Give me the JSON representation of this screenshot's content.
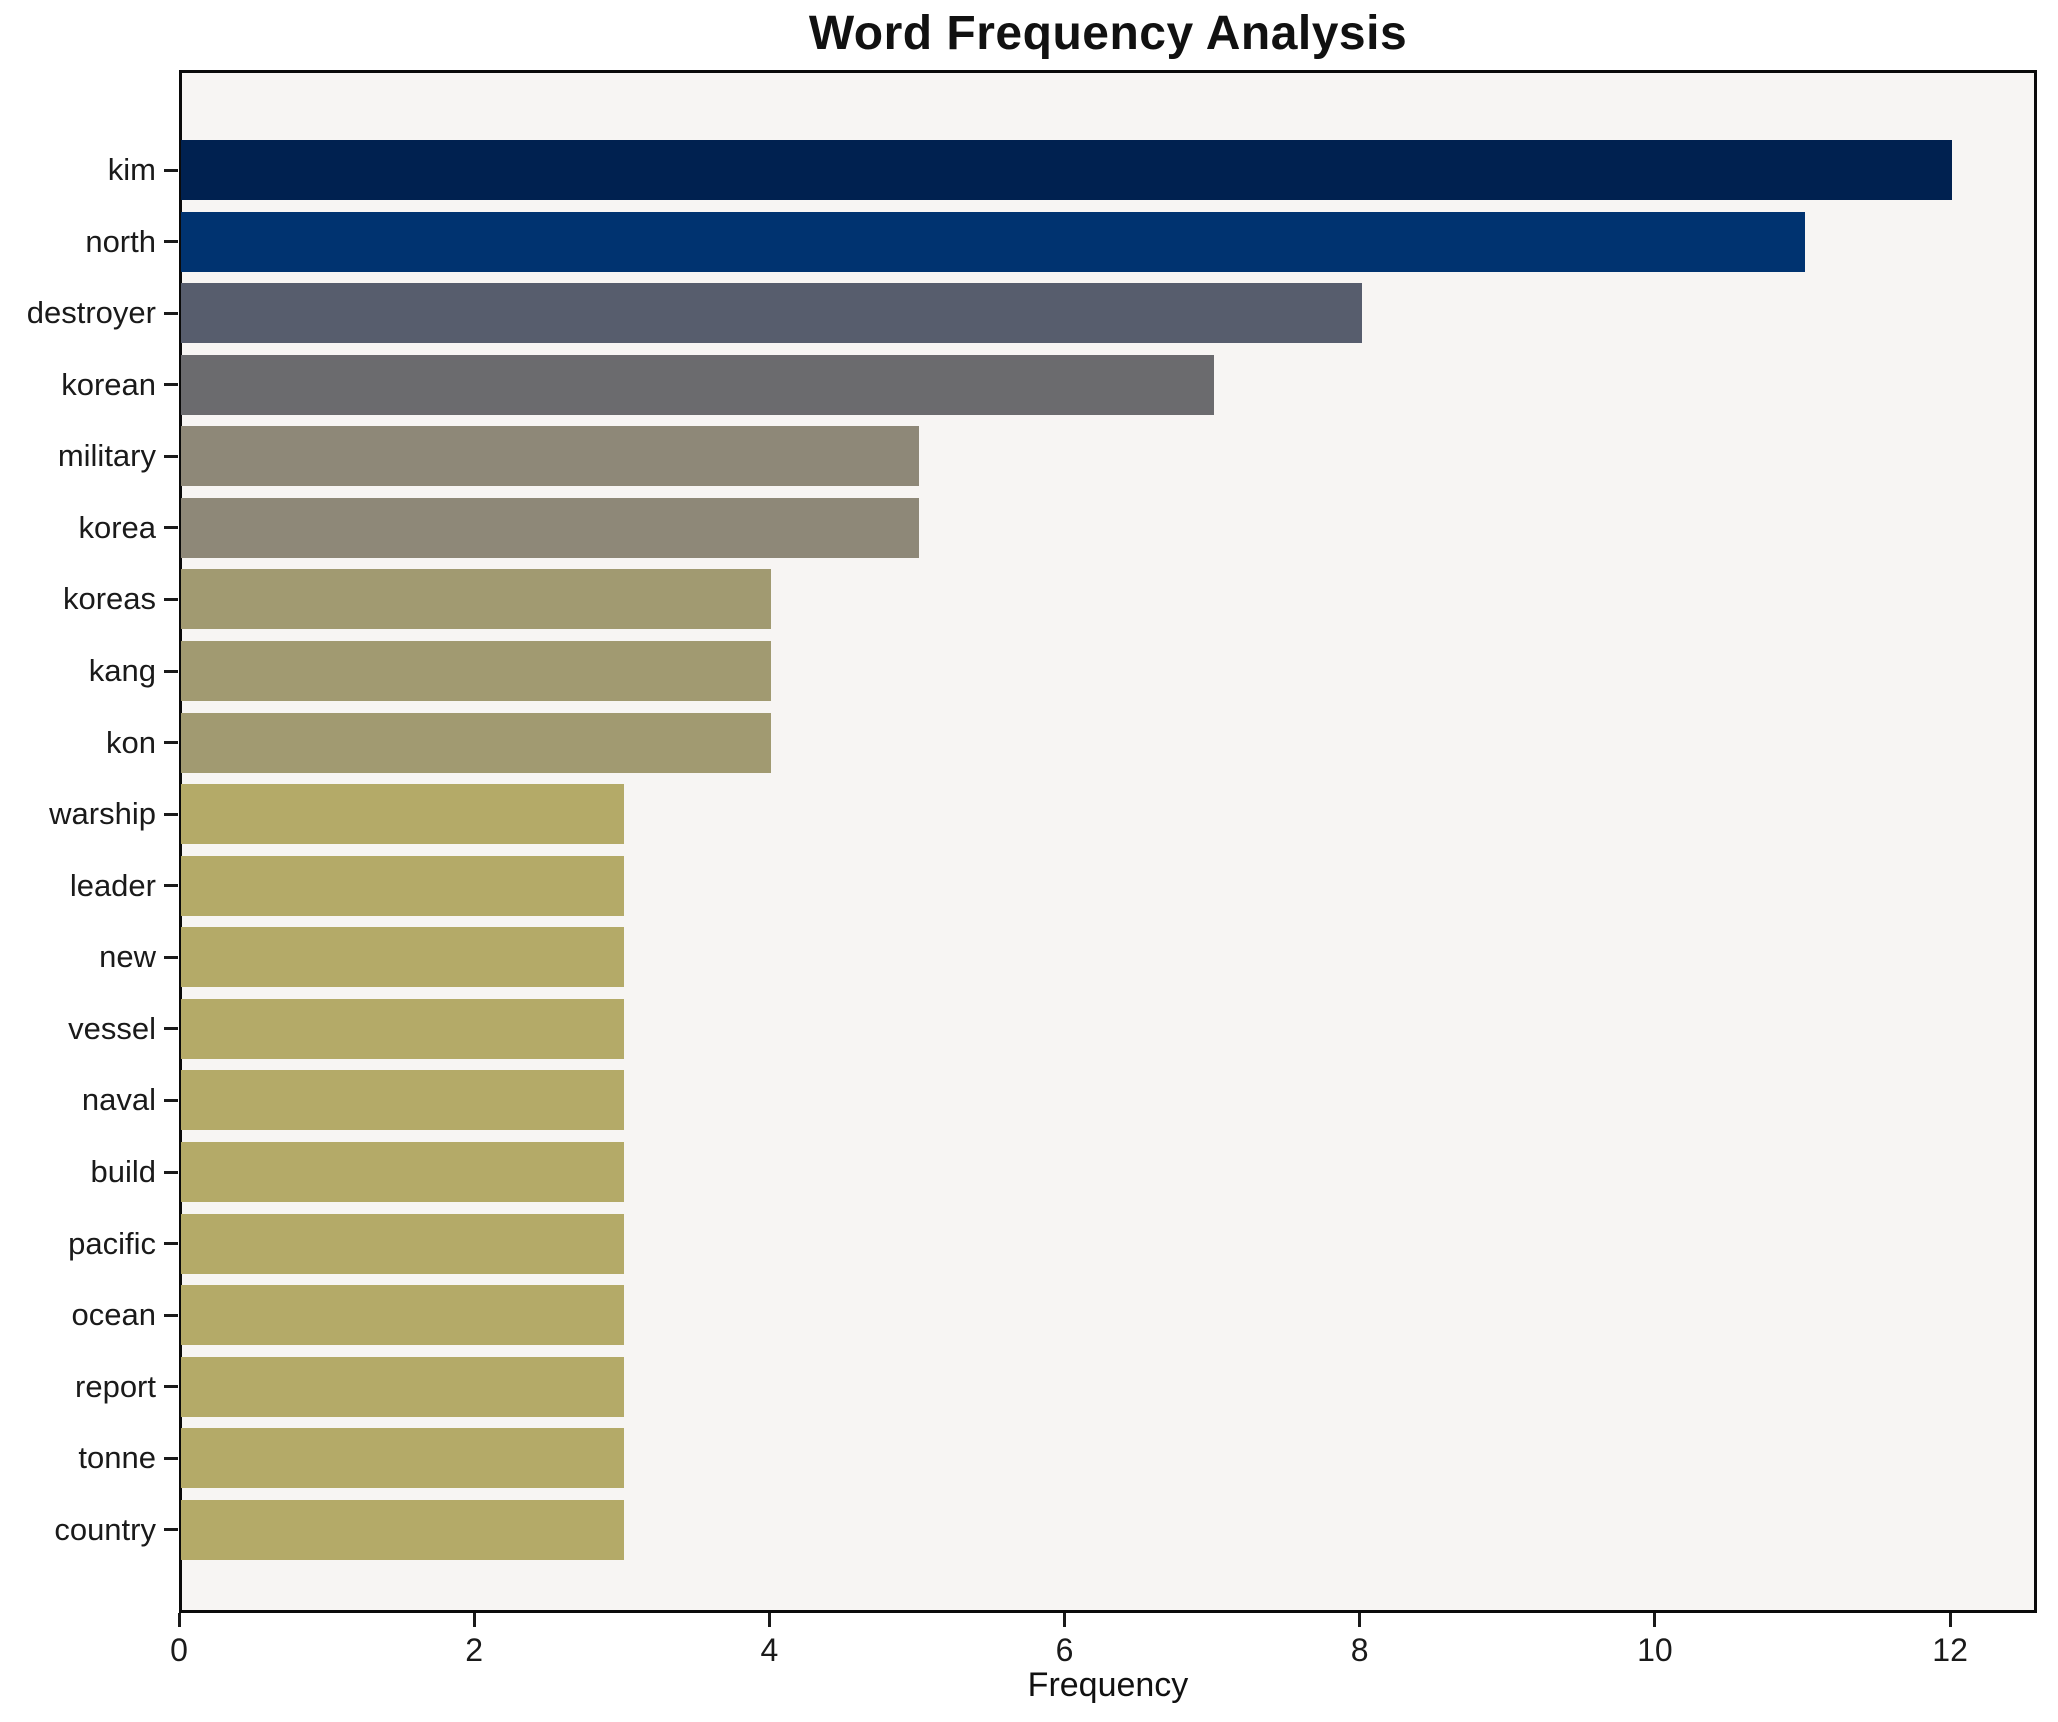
{
  "chart_data": {
    "type": "bar",
    "orientation": "horizontal",
    "title": "Word Frequency Analysis",
    "xlabel": "Frequency",
    "ylabel": "",
    "categories": [
      "kim",
      "north",
      "destroyer",
      "korean",
      "military",
      "korea",
      "koreas",
      "kang",
      "kon",
      "warship",
      "leader",
      "new",
      "vessel",
      "naval",
      "build",
      "pacific",
      "ocean",
      "report",
      "tonne",
      "country"
    ],
    "values": [
      12,
      11,
      8,
      7,
      5,
      5,
      4,
      4,
      4,
      3,
      3,
      3,
      3,
      3,
      3,
      3,
      3,
      3,
      3,
      3
    ],
    "bar_colors": [
      "#002150",
      "#003370",
      "#575d6d",
      "#6b6b6e",
      "#8e8878",
      "#8e8878",
      "#a19a71",
      "#a19a71",
      "#a19a71",
      "#b4aa68",
      "#b4aa68",
      "#b4aa68",
      "#b4aa68",
      "#b4aa68",
      "#b4aa68",
      "#b4aa68",
      "#b4aa68",
      "#b4aa68",
      "#b4aa68",
      "#b4aa68"
    ],
    "x_ticks": [
      0,
      2,
      4,
      6,
      8,
      10,
      12
    ],
    "xlim": [
      0,
      12.59
    ],
    "grid": false,
    "legend": null,
    "plot_background": "#f7f5f3",
    "figure_background": "#ffffff",
    "axis_color": "#0a0a0a",
    "text_color": "#1a1a1a"
  }
}
